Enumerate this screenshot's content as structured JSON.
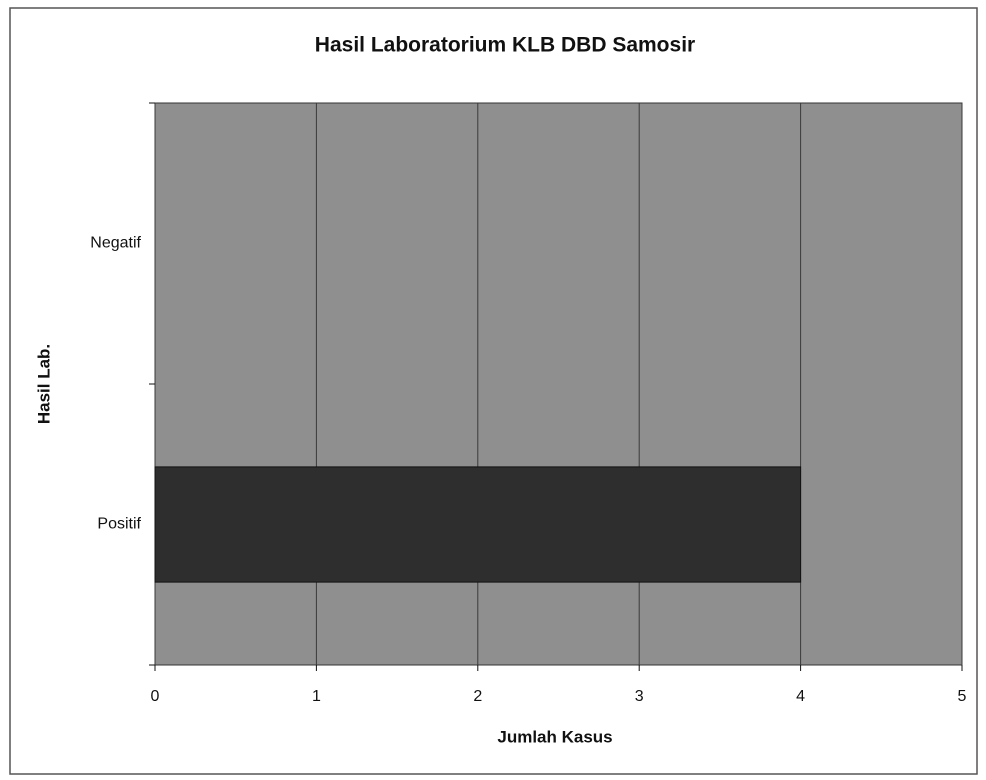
{
  "chart_data": {
    "type": "barh",
    "title": "Hasil Laboratorium KLB DBD Samosir",
    "xlabel": "Jumlah Kasus",
    "ylabel": "Hasil Lab.",
    "categories": [
      "Negatif",
      "Positif"
    ],
    "values": [
      0,
      4
    ],
    "color": "#2e2e2e",
    "xlim": [
      0,
      5
    ],
    "xticks": [
      0,
      1,
      2,
      3,
      4,
      5
    ],
    "grid": true
  }
}
